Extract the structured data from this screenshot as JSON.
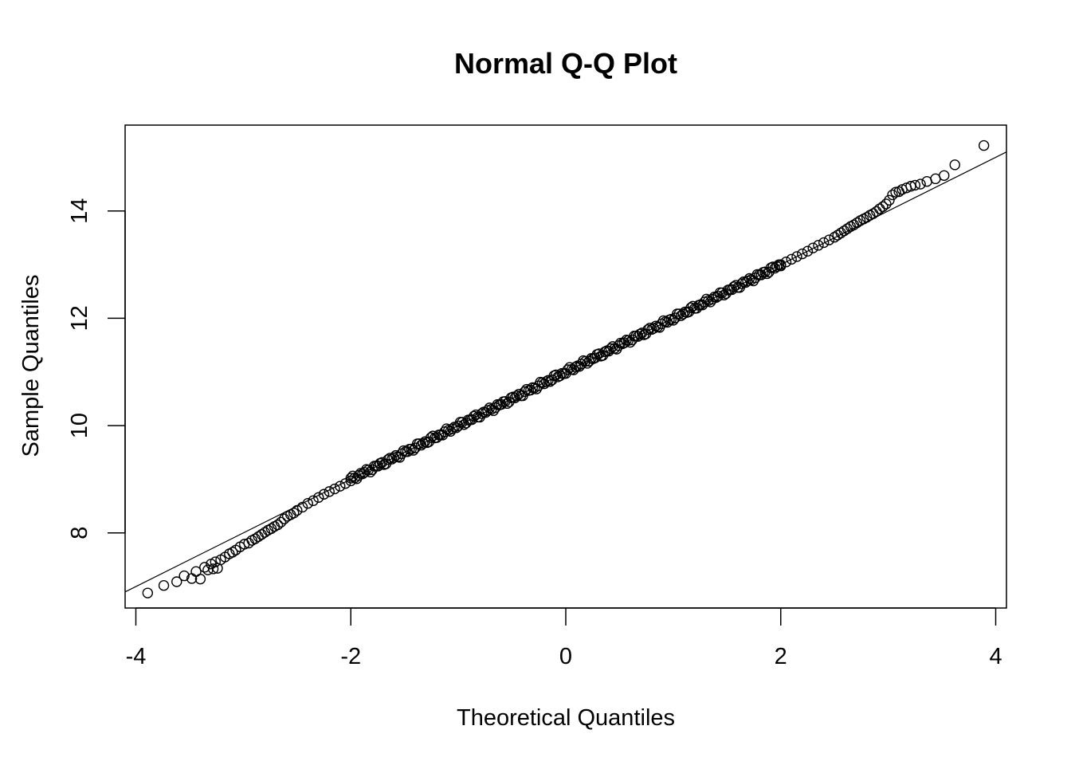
{
  "chart_data": {
    "type": "scatter",
    "title": "Normal Q-Q Plot",
    "xlabel": "Theoretical Quantiles",
    "ylabel": "Sample Quantiles",
    "xlim": [
      -4.1,
      4.1
    ],
    "ylim": [
      6.6,
      15.6
    ],
    "xticks": [
      -4,
      -2,
      0,
      2,
      4
    ],
    "xtick_labels": [
      "-4",
      "-2",
      "0",
      "2",
      "4"
    ],
    "yticks": [
      8,
      10,
      12,
      14
    ],
    "ytick_labels": [
      "8",
      "10",
      "12",
      "14"
    ],
    "grid": false,
    "reference_line": {
      "intercept": 11.0,
      "slope": 1.0
    },
    "marker": "open-circle",
    "color": "#000000",
    "series": [
      {
        "points": [
          [
            -3.89,
            6.88
          ],
          [
            -3.62,
            7.09
          ],
          [
            -3.48,
            7.15
          ],
          [
            -3.4,
            7.14
          ],
          [
            -3.33,
            7.31
          ],
          [
            -3.28,
            7.33
          ],
          [
            -3.24,
            7.34
          ],
          [
            -3.21,
            7.5
          ],
          [
            -3.17,
            7.55
          ],
          [
            -3.13,
            7.61
          ],
          [
            -3.1,
            7.64
          ],
          [
            -3.07,
            7.68
          ],
          [
            -3.03,
            7.74
          ],
          [
            -2.99,
            7.79
          ],
          [
            -2.95,
            7.81
          ],
          [
            -2.92,
            7.86
          ],
          [
            -2.89,
            7.89
          ],
          [
            -2.86,
            7.93
          ],
          [
            -2.83,
            7.97
          ],
          [
            -2.8,
            8.01
          ],
          [
            -2.77,
            8.05
          ],
          [
            -2.74,
            8.08
          ],
          [
            -2.71,
            8.12
          ],
          [
            -2.68,
            8.15
          ],
          [
            -2.65,
            8.2
          ],
          [
            -2.62,
            8.26
          ],
          [
            -2.59,
            8.31
          ],
          [
            -2.56,
            8.34
          ],
          [
            -2.53,
            8.37
          ],
          [
            -2.5,
            8.42
          ],
          [
            -2.45,
            8.48
          ],
          [
            -2.4,
            8.55
          ],
          [
            -2.35,
            8.6
          ],
          [
            -2.3,
            8.66
          ],
          [
            -2.25,
            8.72
          ],
          [
            -2.2,
            8.77
          ],
          [
            -2.15,
            8.82
          ],
          [
            -2.1,
            8.87
          ],
          [
            -2.05,
            8.92
          ],
          [
            -2.0,
            8.97
          ],
          [
            -3.74,
            7.02
          ],
          [
            -3.55,
            7.2
          ],
          [
            -3.44,
            7.28
          ],
          [
            -3.36,
            7.36
          ],
          [
            -3.3,
            7.42
          ],
          [
            -3.26,
            7.46
          ]
        ]
      }
    ],
    "dense_segment": {
      "x_from": -2.0,
      "x_to": 2.0,
      "intercept": 11.0,
      "slope": 1.0
    },
    "upper_tail": [
      [
        2.0,
        13.0
      ],
      [
        2.05,
        13.05
      ],
      [
        2.1,
        13.1
      ],
      [
        2.15,
        13.15
      ],
      [
        2.2,
        13.2
      ],
      [
        2.25,
        13.25
      ],
      [
        2.3,
        13.31
      ],
      [
        2.35,
        13.36
      ],
      [
        2.4,
        13.41
      ],
      [
        2.45,
        13.46
      ],
      [
        2.5,
        13.51
      ],
      [
        2.53,
        13.55
      ],
      [
        2.56,
        13.59
      ],
      [
        2.59,
        13.63
      ],
      [
        2.62,
        13.67
      ],
      [
        2.65,
        13.71
      ],
      [
        2.68,
        13.74
      ],
      [
        2.71,
        13.78
      ],
      [
        2.74,
        13.82
      ],
      [
        2.77,
        13.85
      ],
      [
        2.8,
        13.88
      ],
      [
        2.83,
        13.92
      ],
      [
        2.86,
        13.95
      ],
      [
        2.89,
        13.99
      ],
      [
        2.92,
        14.04
      ],
      [
        2.95,
        14.08
      ],
      [
        2.98,
        14.13
      ],
      [
        3.01,
        14.2
      ],
      [
        3.04,
        14.3
      ],
      [
        3.07,
        14.35
      ],
      [
        3.1,
        14.36
      ],
      [
        3.13,
        14.4
      ],
      [
        3.17,
        14.43
      ],
      [
        3.21,
        14.46
      ],
      [
        3.25,
        14.48
      ],
      [
        3.3,
        14.5
      ],
      [
        3.36,
        14.55
      ],
      [
        3.44,
        14.6
      ],
      [
        3.52,
        14.66
      ],
      [
        3.62,
        14.86
      ],
      [
        3.89,
        15.22
      ]
    ]
  }
}
